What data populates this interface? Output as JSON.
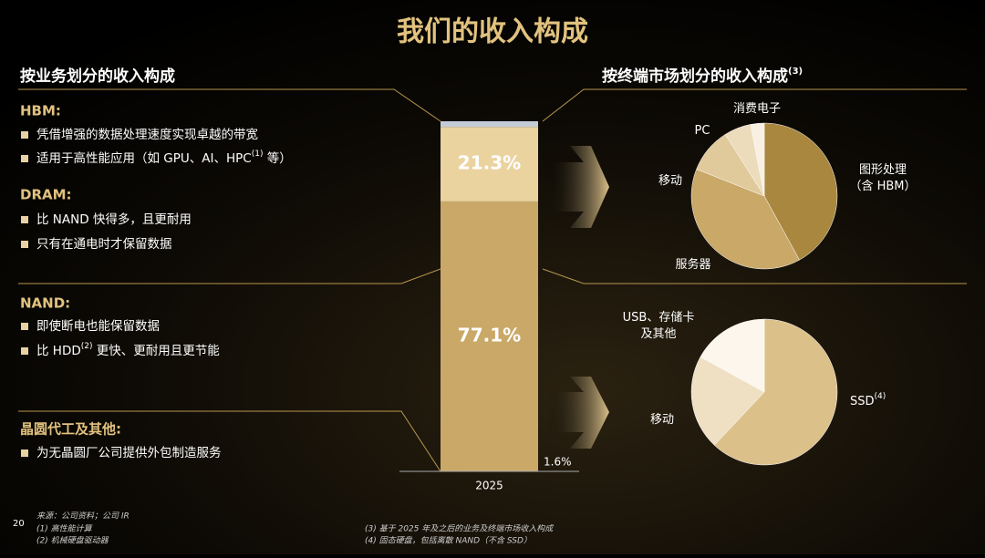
{
  "title": "我们的收入构成",
  "page_number": "20",
  "left_heading": "按业务划分的收入构成",
  "right_heading": {
    "text": "按终端市场划分的收入构成",
    "sup": "(3)"
  },
  "sections": [
    {
      "label": "HBM:",
      "bullets": [
        {
          "text": "凭借增强的数据处理速度实现卓越的带宽"
        },
        {
          "text": "适用于高性能应用（如 GPU、AI、HPC",
          "sup": "(1)",
          "tail": " 等）"
        }
      ]
    },
    {
      "label": "DRAM:",
      "bullets": [
        {
          "text": "比 NAND 快得多，且更耐用"
        },
        {
          "text": "只有在通电时才保留数据"
        }
      ]
    },
    {
      "label": "NAND:",
      "bullets": [
        {
          "text": "即使断电也能保留数据"
        },
        {
          "text": "比 HDD",
          "sup": "(2)",
          "tail": " 更快、更耐用且更节能"
        }
      ]
    },
    {
      "label": "晶圆代工及其他:",
      "bullets": [
        {
          "text": "为无晶圆厂公司提供外包制造服务"
        }
      ]
    }
  ],
  "chart_data": [
    {
      "type": "stacked-bar",
      "categories": [
        "2025"
      ],
      "ylim": [
        0,
        100
      ],
      "series": [
        {
          "color": "#c9a868",
          "values": [
            77.1
          ],
          "value_labels": [
            "77.1%"
          ]
        },
        {
          "color": "#ebd3a0",
          "values": [
            21.3
          ],
          "value_labels": [
            "21.3%"
          ]
        },
        {
          "color": "#c3ccd6",
          "values": [
            1.6
          ],
          "value_labels": [
            "1.6%"
          ]
        }
      ]
    },
    {
      "type": "pie",
      "categories": [
        "图形处理\n（含 HBM）",
        "服务器",
        "移动",
        "PC",
        "消费电子"
      ],
      "values": [
        42,
        39,
        10,
        6,
        3
      ],
      "colors": [
        "#a9873f",
        "#c9a868",
        "#e0c99a",
        "#ecdcbc",
        "#f8f0e2"
      ]
    },
    {
      "type": "pie",
      "categories": [
        "SSD",
        "移动",
        "USB、存储卡\n及其他"
      ],
      "category_sups": [
        "(4)",
        null,
        null
      ],
      "values": [
        62,
        21,
        17
      ],
      "colors": [
        "#dcc08a",
        "#efe0c4",
        "#fcf6ec"
      ]
    }
  ],
  "footnotes": [
    "来源：公司资料；公司 IR",
    "(1)    高性能计算",
    "(2)    机械硬盘驱动器",
    "(3)    基于 2025 年及之后的业务及终端市场收入构成",
    "(4)    固态硬盘，包括离散 NAND（不含 SSD）"
  ]
}
